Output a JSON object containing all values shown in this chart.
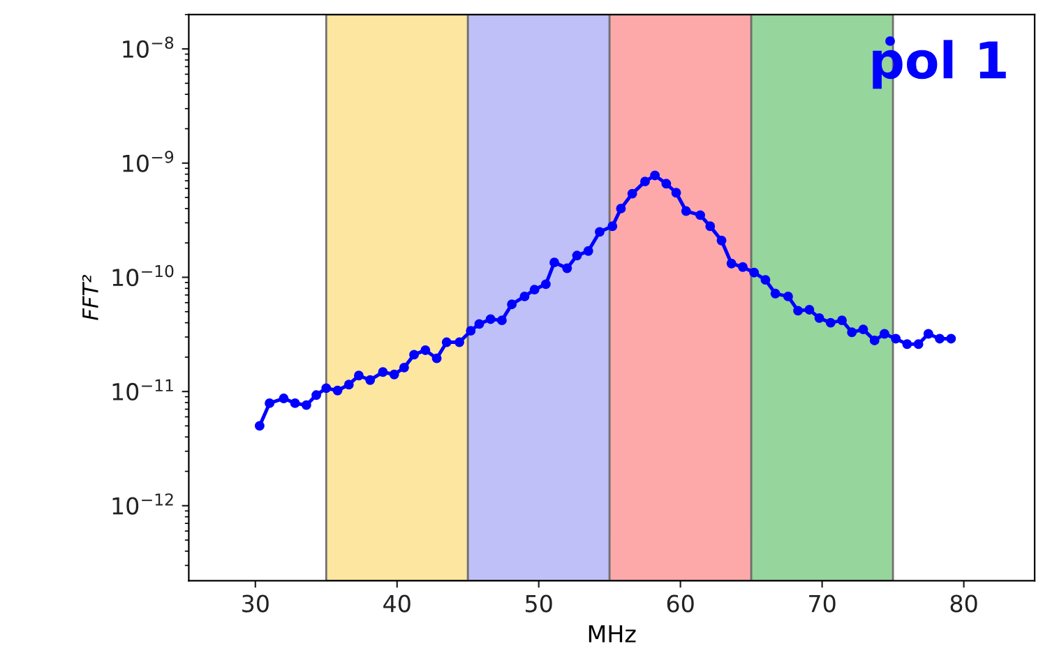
{
  "chart_data": {
    "type": "line",
    "xlabel": "MHz",
    "ylabel": "FFT²",
    "log": "y",
    "grid": false,
    "legend": false,
    "marker": "circle",
    "line_style": "solid",
    "xlim": [
      25.3,
      85
    ],
    "xticks": [
      30,
      40,
      50,
      60,
      70,
      80
    ],
    "ylim": [
      2.2e-13,
      2e-08
    ],
    "yticks": [
      {
        "value": 1e-12,
        "label": "10$^{−12}$"
      },
      {
        "value": 1e-11,
        "label": "10$^{−11}$"
      },
      {
        "value": 1e-10,
        "label": "10$^{−10}$"
      },
      {
        "value": 1e-09,
        "label": "10$^{−9}$"
      },
      {
        "value": 1e-08,
        "label": "10$^{−8}$"
      }
    ],
    "bands": [
      {
        "axis": "x",
        "from": 35,
        "to": 45,
        "color": "#fde6a0"
      },
      {
        "axis": "x",
        "from": 45,
        "to": 55,
        "color": "#c0c0f8"
      },
      {
        "axis": "x",
        "from": 55,
        "to": 65,
        "color": "#fda9aa"
      },
      {
        "axis": "x",
        "from": 65,
        "to": 75,
        "color": "#96d59c"
      }
    ],
    "annotations": [
      "pol 1"
    ],
    "series": [
      {
        "color": "#0000ff",
        "x": [
          30.3,
          31.0,
          32.0,
          32.8,
          33.6,
          34.3,
          35.0,
          35.8,
          36.6,
          37.3,
          38.1,
          39.0,
          39.8,
          40.5,
          41.2,
          42.0,
          42.8,
          43.5,
          44.4,
          45.2,
          45.8,
          46.6,
          47.4,
          48.1,
          49.0,
          49.7,
          50.5,
          51.1,
          52.0,
          52.7,
          53.5,
          54.3,
          55.2,
          55.8,
          56.6,
          57.5,
          58.2,
          59.0,
          59.7,
          60.4,
          61.4,
          62.1,
          62.9,
          63.6,
          64.4,
          65.2,
          66.0,
          66.7,
          67.6,
          68.3,
          69.1,
          69.8,
          70.6,
          71.4,
          72.1,
          72.9,
          73.7,
          74.4,
          75.2,
          76.0,
          76.8,
          77.5,
          78.3,
          79.1
        ],
        "values": [
          5e-12,
          7.9e-12,
          8.7e-12,
          7.9e-12,
          7.6e-12,
          9.3e-12,
          1.07e-11,
          1.02e-11,
          1.15e-11,
          1.38e-11,
          1.26e-11,
          1.48e-11,
          1.41e-11,
          1.62e-11,
          2.1e-11,
          2.3e-11,
          1.95e-11,
          2.7e-11,
          2.7e-11,
          3.4e-11,
          3.9e-11,
          4.3e-11,
          4.2e-11,
          5.8e-11,
          6.8e-11,
          7.8e-11,
          8.7e-11,
          1.35e-10,
          1.2e-10,
          1.55e-10,
          1.7e-10,
          2.5e-10,
          2.8e-10,
          4e-10,
          5.4e-10,
          6.9e-10,
          7.8e-10,
          6.6e-10,
          5.5e-10,
          3.8e-10,
          3.5e-10,
          2.8e-10,
          2.1e-10,
          1.32e-10,
          1.23e-10,
          1.1e-10,
          9.5e-11,
          7.2e-11,
          6.8e-11,
          5.1e-11,
          5.2e-11,
          4.4e-11,
          4e-11,
          4.2e-11,
          3.3e-11,
          3.5e-11,
          2.8e-11,
          3.2e-11,
          2.9e-11,
          2.6e-11,
          2.6e-11,
          3.2e-11,
          2.9e-11,
          2.9e-11
        ]
      },
      {
        "type": "scatter",
        "color": "#0000ff",
        "x": [
          74.8
        ],
        "values": [
          1.17e-08
        ]
      }
    ]
  }
}
